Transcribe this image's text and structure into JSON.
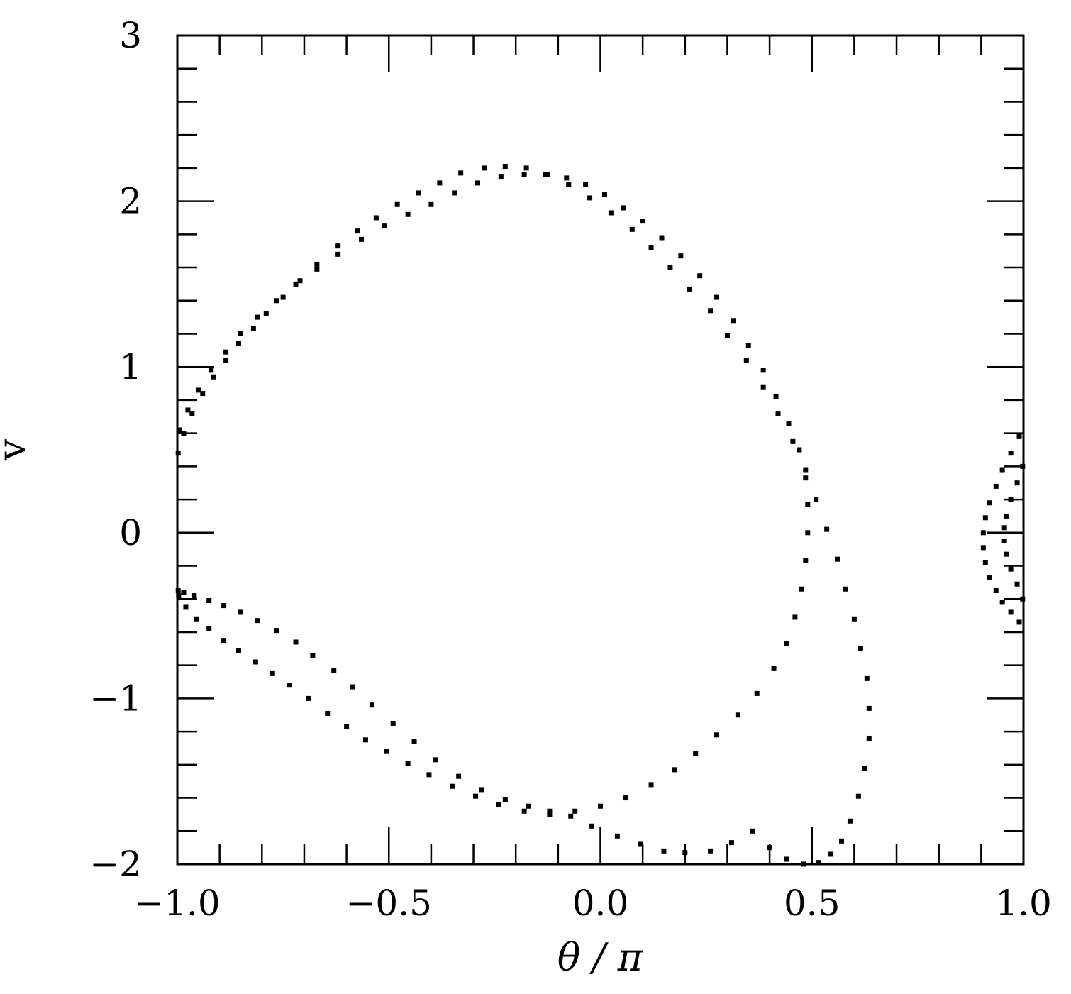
{
  "chart_data": {
    "type": "scatter",
    "xlabel": "θ / π",
    "ylabel": "v",
    "xlim": [
      -1.0,
      1.0
    ],
    "ylim": [
      -2,
      3
    ],
    "grid": false,
    "x_ticks": [
      "−1.0",
      "−0.5",
      "0.0",
      "0.5",
      "1.0"
    ],
    "y_ticks": [
      "−2",
      "−1",
      "0",
      "1",
      "2",
      "3"
    ],
    "marker_color": "#000000",
    "series": [
      {
        "x": [
          -0.998,
          -0.985,
          -0.965,
          -0.94,
          -0.915,
          -0.885,
          -0.855,
          -0.82,
          -0.79,
          -0.75,
          -0.71,
          -0.67,
          -0.62,
          -0.575,
          -0.53,
          -0.48,
          -0.43,
          -0.38,
          -0.33,
          -0.275,
          -0.225,
          -0.175,
          -0.125,
          -0.075,
          -0.025,
          0.025,
          0.075,
          0.12,
          0.165,
          0.21,
          0.26,
          0.3,
          0.345,
          0.385,
          0.42,
          0.455,
          0.485,
          0.51,
          0.535,
          0.56,
          0.58,
          0.6,
          0.615,
          0.63,
          0.635,
          0.635,
          0.625,
          0.61,
          0.59,
          0.57,
          0.545,
          0.515,
          0.48,
          0.44,
          0.4,
          0.36,
          0.31,
          0.26,
          0.2,
          0.15,
          0.095,
          0.04,
          -0.02,
          -0.07,
          -0.12,
          -0.17,
          -0.225,
          -0.28,
          -0.335,
          -0.39,
          -0.44,
          -0.49,
          -0.54,
          -0.585,
          -0.63,
          -0.68,
          -0.72,
          -0.765,
          -0.81,
          -0.85,
          -0.89,
          -0.925,
          -0.96,
          -0.985,
          -0.998
        ],
        "y": [
          0.48,
          0.6,
          0.72,
          0.84,
          0.94,
          1.04,
          1.14,
          1.23,
          1.32,
          1.42,
          1.52,
          1.62,
          1.73,
          1.82,
          1.9,
          1.98,
          2.05,
          2.11,
          2.17,
          2.2,
          2.21,
          2.2,
          2.16,
          2.1,
          2.02,
          1.93,
          1.83,
          1.72,
          1.6,
          1.47,
          1.34,
          1.19,
          1.04,
          0.88,
          0.72,
          0.55,
          0.38,
          0.2,
          0.02,
          -0.16,
          -0.34,
          -0.52,
          -0.7,
          -0.88,
          -1.06,
          -1.24,
          -1.42,
          -1.59,
          -1.74,
          -1.86,
          -1.94,
          -1.99,
          -2.0,
          -1.97,
          -1.9,
          -1.8,
          -1.87,
          -1.92,
          -1.93,
          -1.92,
          -1.88,
          -1.83,
          -1.77,
          -1.71,
          -1.68,
          -1.65,
          -1.61,
          -1.55,
          -1.47,
          -1.37,
          -1.26,
          -1.15,
          -1.04,
          -0.93,
          -0.83,
          -0.74,
          -0.66,
          -0.59,
          -0.53,
          -0.48,
          -0.44,
          -0.41,
          -0.38,
          -0.36,
          -0.35
        ]
      },
      {
        "x": [
          -0.995,
          -0.975,
          -0.95,
          -0.92,
          -0.885,
          -0.85,
          -0.81,
          -0.765,
          -0.72,
          -0.67,
          -0.62,
          -0.565,
          -0.51,
          -0.455,
          -0.4,
          -0.345,
          -0.29,
          -0.235,
          -0.18,
          -0.13,
          -0.08,
          -0.035,
          0.01,
          0.055,
          0.1,
          0.145,
          0.19,
          0.235,
          0.275,
          0.315,
          0.35,
          0.385,
          0.415,
          0.445,
          0.47,
          0.485,
          0.49,
          0.49,
          0.485,
          0.475,
          0.46,
          0.44,
          0.41,
          0.37,
          0.325,
          0.275,
          0.225,
          0.175,
          0.12,
          0.06,
          0.0,
          -0.06,
          -0.12,
          -0.18,
          -0.24,
          -0.295,
          -0.35,
          -0.405,
          -0.455,
          -0.505,
          -0.555,
          -0.6,
          -0.645,
          -0.69,
          -0.735,
          -0.775,
          -0.815,
          -0.855,
          -0.89,
          -0.925,
          -0.955,
          -0.98,
          -0.997
        ],
        "y": [
          0.62,
          0.74,
          0.86,
          0.98,
          1.09,
          1.2,
          1.3,
          1.4,
          1.5,
          1.59,
          1.68,
          1.77,
          1.85,
          1.92,
          1.98,
          2.05,
          2.11,
          2.15,
          2.16,
          2.16,
          2.14,
          2.1,
          2.04,
          1.96,
          1.88,
          1.78,
          1.67,
          1.55,
          1.42,
          1.28,
          1.13,
          0.98,
          0.82,
          0.66,
          0.5,
          0.33,
          0.17,
          0.0,
          -0.17,
          -0.34,
          -0.51,
          -0.67,
          -0.82,
          -0.97,
          -1.1,
          -1.22,
          -1.33,
          -1.43,
          -1.52,
          -1.6,
          -1.65,
          -1.68,
          -1.7,
          -1.68,
          -1.64,
          -1.59,
          -1.53,
          -1.46,
          -1.39,
          -1.32,
          -1.25,
          -1.17,
          -1.09,
          -1.0,
          -0.92,
          -0.85,
          -0.78,
          -0.71,
          -0.65,
          -0.58,
          -0.52,
          -0.45,
          -0.38
        ]
      },
      {
        "x": [
          0.99,
          0.97,
          0.95,
          0.935,
          0.92,
          0.91,
          0.905,
          0.905,
          0.91,
          0.92,
          0.935,
          0.95,
          0.97,
          0.99
        ],
        "y": [
          0.58,
          0.48,
          0.38,
          0.28,
          0.18,
          0.09,
          0.0,
          -0.09,
          -0.18,
          -0.27,
          -0.35,
          -0.42,
          -0.48,
          -0.54
        ]
      },
      {
        "x": [
          0.998,
          0.985,
          0.97,
          0.96,
          0.955,
          0.955,
          0.96,
          0.97,
          0.985,
          0.998
        ],
        "y": [
          0.4,
          0.3,
          0.2,
          0.1,
          0.03,
          -0.05,
          -0.13,
          -0.22,
          -0.31,
          -0.4
        ]
      }
    ]
  }
}
